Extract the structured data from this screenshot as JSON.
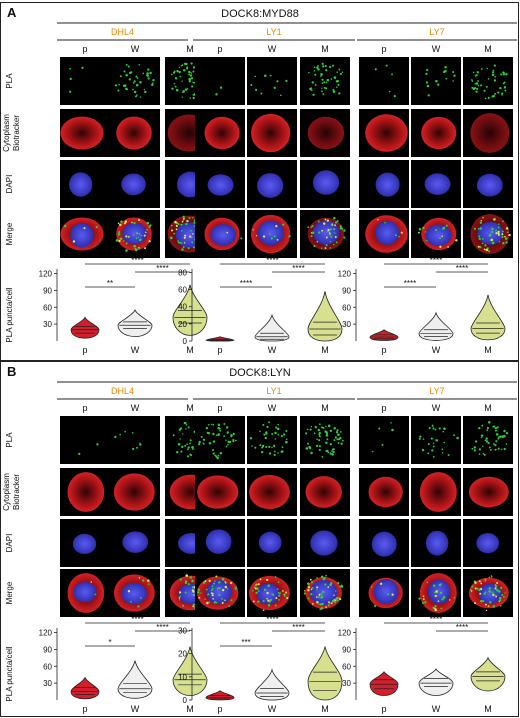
{
  "panels": [
    {
      "letter": "A",
      "title": "DOCK8:MYD88",
      "cell_lines": [
        "DHL4",
        "LY1",
        "LY7"
      ],
      "conditions": [
        "p",
        "W",
        "M"
      ],
      "row_labels": [
        {
          "name": "row-label-pla",
          "lines": [
            "PLA"
          ]
        },
        {
          "name": "row-label-cytoplasm",
          "lines": [
            "Cytoplasm",
            "Biotracker"
          ]
        },
        {
          "name": "row-label-dapi",
          "lines": [
            "DAPI"
          ]
        },
        {
          "name": "row-label-merge",
          "lines": [
            "Merge"
          ]
        }
      ],
      "ylabel": "PLA puncta/cell",
      "plots": [
        {
          "yticks": [
            30,
            60,
            90,
            120
          ],
          "ymax": 128,
          "violins": [
            {
              "median": 20,
              "q1": 14,
              "q3": 26,
              "min": 5,
              "max": 42
            },
            {
              "median": 28,
              "q1": 22,
              "q3": 34,
              "min": 8,
              "max": 55
            },
            {
              "median": 42,
              "q1": 32,
              "q3": 54,
              "min": 10,
              "max": 100
            }
          ],
          "sig": [
            {
              "from": 0,
              "to": 1,
              "label": "**"
            },
            {
              "from": 1,
              "to": 2,
              "label": "****"
            },
            {
              "from": 0,
              "to": 2,
              "label": "****"
            }
          ]
        },
        {
          "yticks": [
            0,
            20,
            40,
            60,
            80
          ],
          "ymax": 84,
          "violins": [
            {
              "median": 1,
              "q1": 0,
              "q3": 2,
              "min": 0,
              "max": 5
            },
            {
              "median": 5,
              "q1": 2,
              "q3": 9,
              "min": 0,
              "max": 30
            },
            {
              "median": 14,
              "q1": 7,
              "q3": 22,
              "min": 0,
              "max": 58
            }
          ],
          "sig": [
            {
              "from": 0,
              "to": 1,
              "label": "****"
            },
            {
              "from": 1,
              "to": 2,
              "label": "****"
            },
            {
              "from": 0,
              "to": 2,
              "label": "****"
            }
          ]
        },
        {
          "yticks": [
            30,
            60,
            90,
            120
          ],
          "ymax": 128,
          "violins": [
            {
              "median": 7,
              "q1": 4,
              "q3": 11,
              "min": 1,
              "max": 20
            },
            {
              "median": 13,
              "q1": 8,
              "q3": 20,
              "min": 1,
              "max": 50
            },
            {
              "median": 22,
              "q1": 14,
              "q3": 32,
              "min": 2,
              "max": 82
            }
          ],
          "sig": [
            {
              "from": 0,
              "to": 1,
              "label": "****"
            },
            {
              "from": 1,
              "to": 2,
              "label": "****"
            },
            {
              "from": 0,
              "to": 2,
              "label": "****"
            }
          ]
        }
      ]
    },
    {
      "letter": "B",
      "title": "DOCK8:LYN",
      "cell_lines": [
        "DHL4",
        "LY1",
        "LY7"
      ],
      "conditions": [
        "p",
        "W",
        "M"
      ],
      "row_labels": [
        {
          "name": "row-label-pla",
          "lines": [
            "PLA"
          ]
        },
        {
          "name": "row-label-cytoplasm",
          "lines": [
            "Cytoplasm",
            "Biotracker"
          ]
        },
        {
          "name": "row-label-dapi",
          "lines": [
            "DAPI"
          ]
        },
        {
          "name": "row-label-merge",
          "lines": [
            "Merge"
          ]
        }
      ],
      "ylabel": "PLA puncta/cell",
      "plots": [
        {
          "yticks": [
            30,
            60,
            90,
            120
          ],
          "ymax": 128,
          "violins": [
            {
              "median": 15,
              "q1": 10,
              "q3": 22,
              "min": 2,
              "max": 40
            },
            {
              "median": 20,
              "q1": 13,
              "q3": 29,
              "min": 3,
              "max": 70
            },
            {
              "median": 36,
              "q1": 27,
              "q3": 46,
              "min": 8,
              "max": 95
            }
          ],
          "sig": [
            {
              "from": 0,
              "to": 1,
              "label": "*"
            },
            {
              "from": 1,
              "to": 2,
              "label": "****"
            },
            {
              "from": 0,
              "to": 2,
              "label": "****"
            }
          ]
        },
        {
          "yticks": [
            0,
            10,
            20,
            30
          ],
          "ymax": 31,
          "violins": [
            {
              "median": 1,
              "q1": 0.5,
              "q3": 2,
              "min": 0,
              "max": 4
            },
            {
              "median": 3,
              "q1": 1.5,
              "q3": 5,
              "min": 0,
              "max": 13
            },
            {
              "median": 8,
              "q1": 4,
              "q3": 12,
              "min": 0,
              "max": 23
            }
          ],
          "sig": [
            {
              "from": 0,
              "to": 1,
              "label": "***"
            },
            {
              "from": 1,
              "to": 2,
              "label": "****"
            },
            {
              "from": 0,
              "to": 2,
              "label": "****"
            }
          ]
        },
        {
          "yticks": [
            30,
            60,
            90,
            120
          ],
          "ymax": 128,
          "violins": [
            {
              "median": 28,
              "q1": 20,
              "q3": 36,
              "min": 8,
              "max": 50
            },
            {
              "median": 30,
              "q1": 24,
              "q3": 38,
              "min": 8,
              "max": 55
            },
            {
              "median": 42,
              "q1": 34,
              "q3": 50,
              "min": 16,
              "max": 75
            }
          ],
          "sig": [
            {
              "from": 1,
              "to": 2,
              "label": "****"
            },
            {
              "from": 0,
              "to": 2,
              "label": "****"
            }
          ]
        }
      ]
    }
  ],
  "colors": {
    "cell_line_label": "#e58a00",
    "violin_p": "#d51d2b",
    "violin_w": "#efefef",
    "violin_m": "#d6e08f",
    "pla_dot": "#2ed13a",
    "cytoplasm": "#c3151a",
    "nucleus": "#4a4ad8"
  },
  "chart_data": [
    {
      "type": "violin",
      "title": "DOCK8:MYD88 DHL4",
      "categories": [
        "p",
        "W",
        "M"
      ],
      "ylabel": "PLA puncta/cell",
      "medians": [
        20,
        28,
        42
      ],
      "ylim": [
        0,
        128
      ]
    },
    {
      "type": "violin",
      "title": "DOCK8:MYD88 LY1",
      "categories": [
        "p",
        "W",
        "M"
      ],
      "medians": [
        1,
        5,
        14
      ],
      "ylim": [
        0,
        84
      ]
    },
    {
      "type": "violin",
      "title": "DOCK8:MYD88 LY7",
      "categories": [
        "p",
        "W",
        "M"
      ],
      "medians": [
        7,
        13,
        22
      ],
      "ylim": [
        0,
        128
      ]
    },
    {
      "type": "violin",
      "title": "DOCK8:LYN DHL4",
      "categories": [
        "p",
        "W",
        "M"
      ],
      "ylabel": "PLA puncta/cell",
      "medians": [
        15,
        20,
        36
      ],
      "ylim": [
        0,
        128
      ]
    },
    {
      "type": "violin",
      "title": "DOCK8:LYN LY1",
      "categories": [
        "p",
        "W",
        "M"
      ],
      "medians": [
        1,
        3,
        8
      ],
      "ylim": [
        0,
        31
      ]
    },
    {
      "type": "violin",
      "title": "DOCK8:LYN LY7",
      "categories": [
        "p",
        "W",
        "M"
      ],
      "medians": [
        28,
        30,
        42
      ],
      "ylim": [
        0,
        128
      ]
    }
  ]
}
